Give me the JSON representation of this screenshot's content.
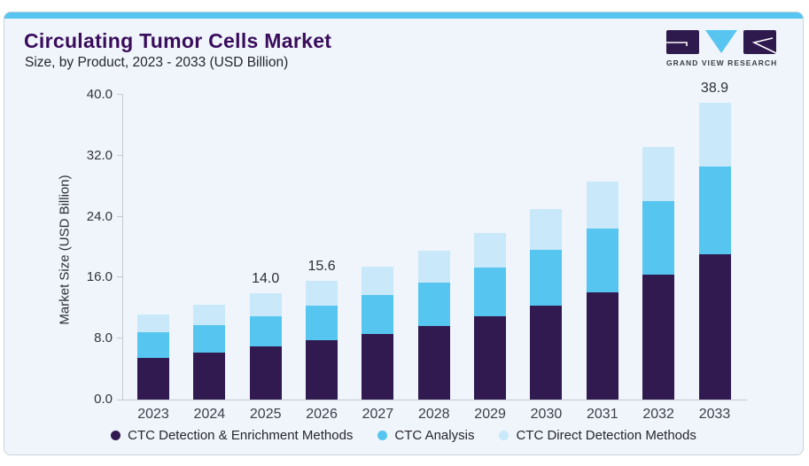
{
  "header": {
    "title": "Circulating Tumor Cells Market",
    "subtitle": "Size, by Product, 2023 - 2033 (USD Billion)",
    "logo_text": "GRAND VIEW RESEARCH"
  },
  "colors": {
    "accent_bar": "#58c5f0",
    "title": "#3a0d5c",
    "card_background": "#eff5fa",
    "axis": "#c4c9d0",
    "series_dark_purple": "#311a4f",
    "series_mid_blue": "#56c5f0",
    "series_light_blue": "#c9e8f9"
  },
  "chart_data": {
    "type": "bar",
    "stacked": true,
    "title": "Circulating Tumor Cells Market Size, by Product, 2023 - 2033 (USD Billion)",
    "xlabel": "",
    "ylabel": "Market Size (USD Billion)",
    "ylim": [
      0,
      40
    ],
    "yticks": [
      0,
      8,
      16,
      24,
      32,
      40
    ],
    "ytick_labels": [
      "0.0",
      "8.0",
      "16.0",
      "24.0",
      "32.0",
      "40.0"
    ],
    "grid": false,
    "legend_position": "bottom",
    "categories": [
      "2023",
      "2024",
      "2025",
      "2026",
      "2027",
      "2028",
      "2029",
      "2030",
      "2031",
      "2032",
      "2033"
    ],
    "series": [
      {
        "name": "CTC Detection & Enrichment Methods",
        "color": "#311a4f",
        "values": [
          5.5,
          6.2,
          7.0,
          7.8,
          8.6,
          9.6,
          10.9,
          12.3,
          14.1,
          16.4,
          19.1
        ]
      },
      {
        "name": "CTC Analysis",
        "color": "#56c5f0",
        "values": [
          3.3,
          3.6,
          3.9,
          4.5,
          5.1,
          5.7,
          6.4,
          7.4,
          8.4,
          9.7,
          11.5
        ]
      },
      {
        "name": "CTC Direct Detection Methods",
        "color": "#c9e8f9",
        "values": [
          2.4,
          2.7,
          3.1,
          3.3,
          3.7,
          4.2,
          4.6,
          5.3,
          6.1,
          7.0,
          8.3
        ]
      }
    ],
    "totals": [
      11.2,
      12.5,
      14.0,
      15.6,
      17.4,
      19.5,
      21.9,
      25.0,
      28.6,
      33.1,
      38.9
    ],
    "bar_labels": {
      "2025": "14.0",
      "2026": "15.6",
      "2033": "38.9"
    }
  }
}
